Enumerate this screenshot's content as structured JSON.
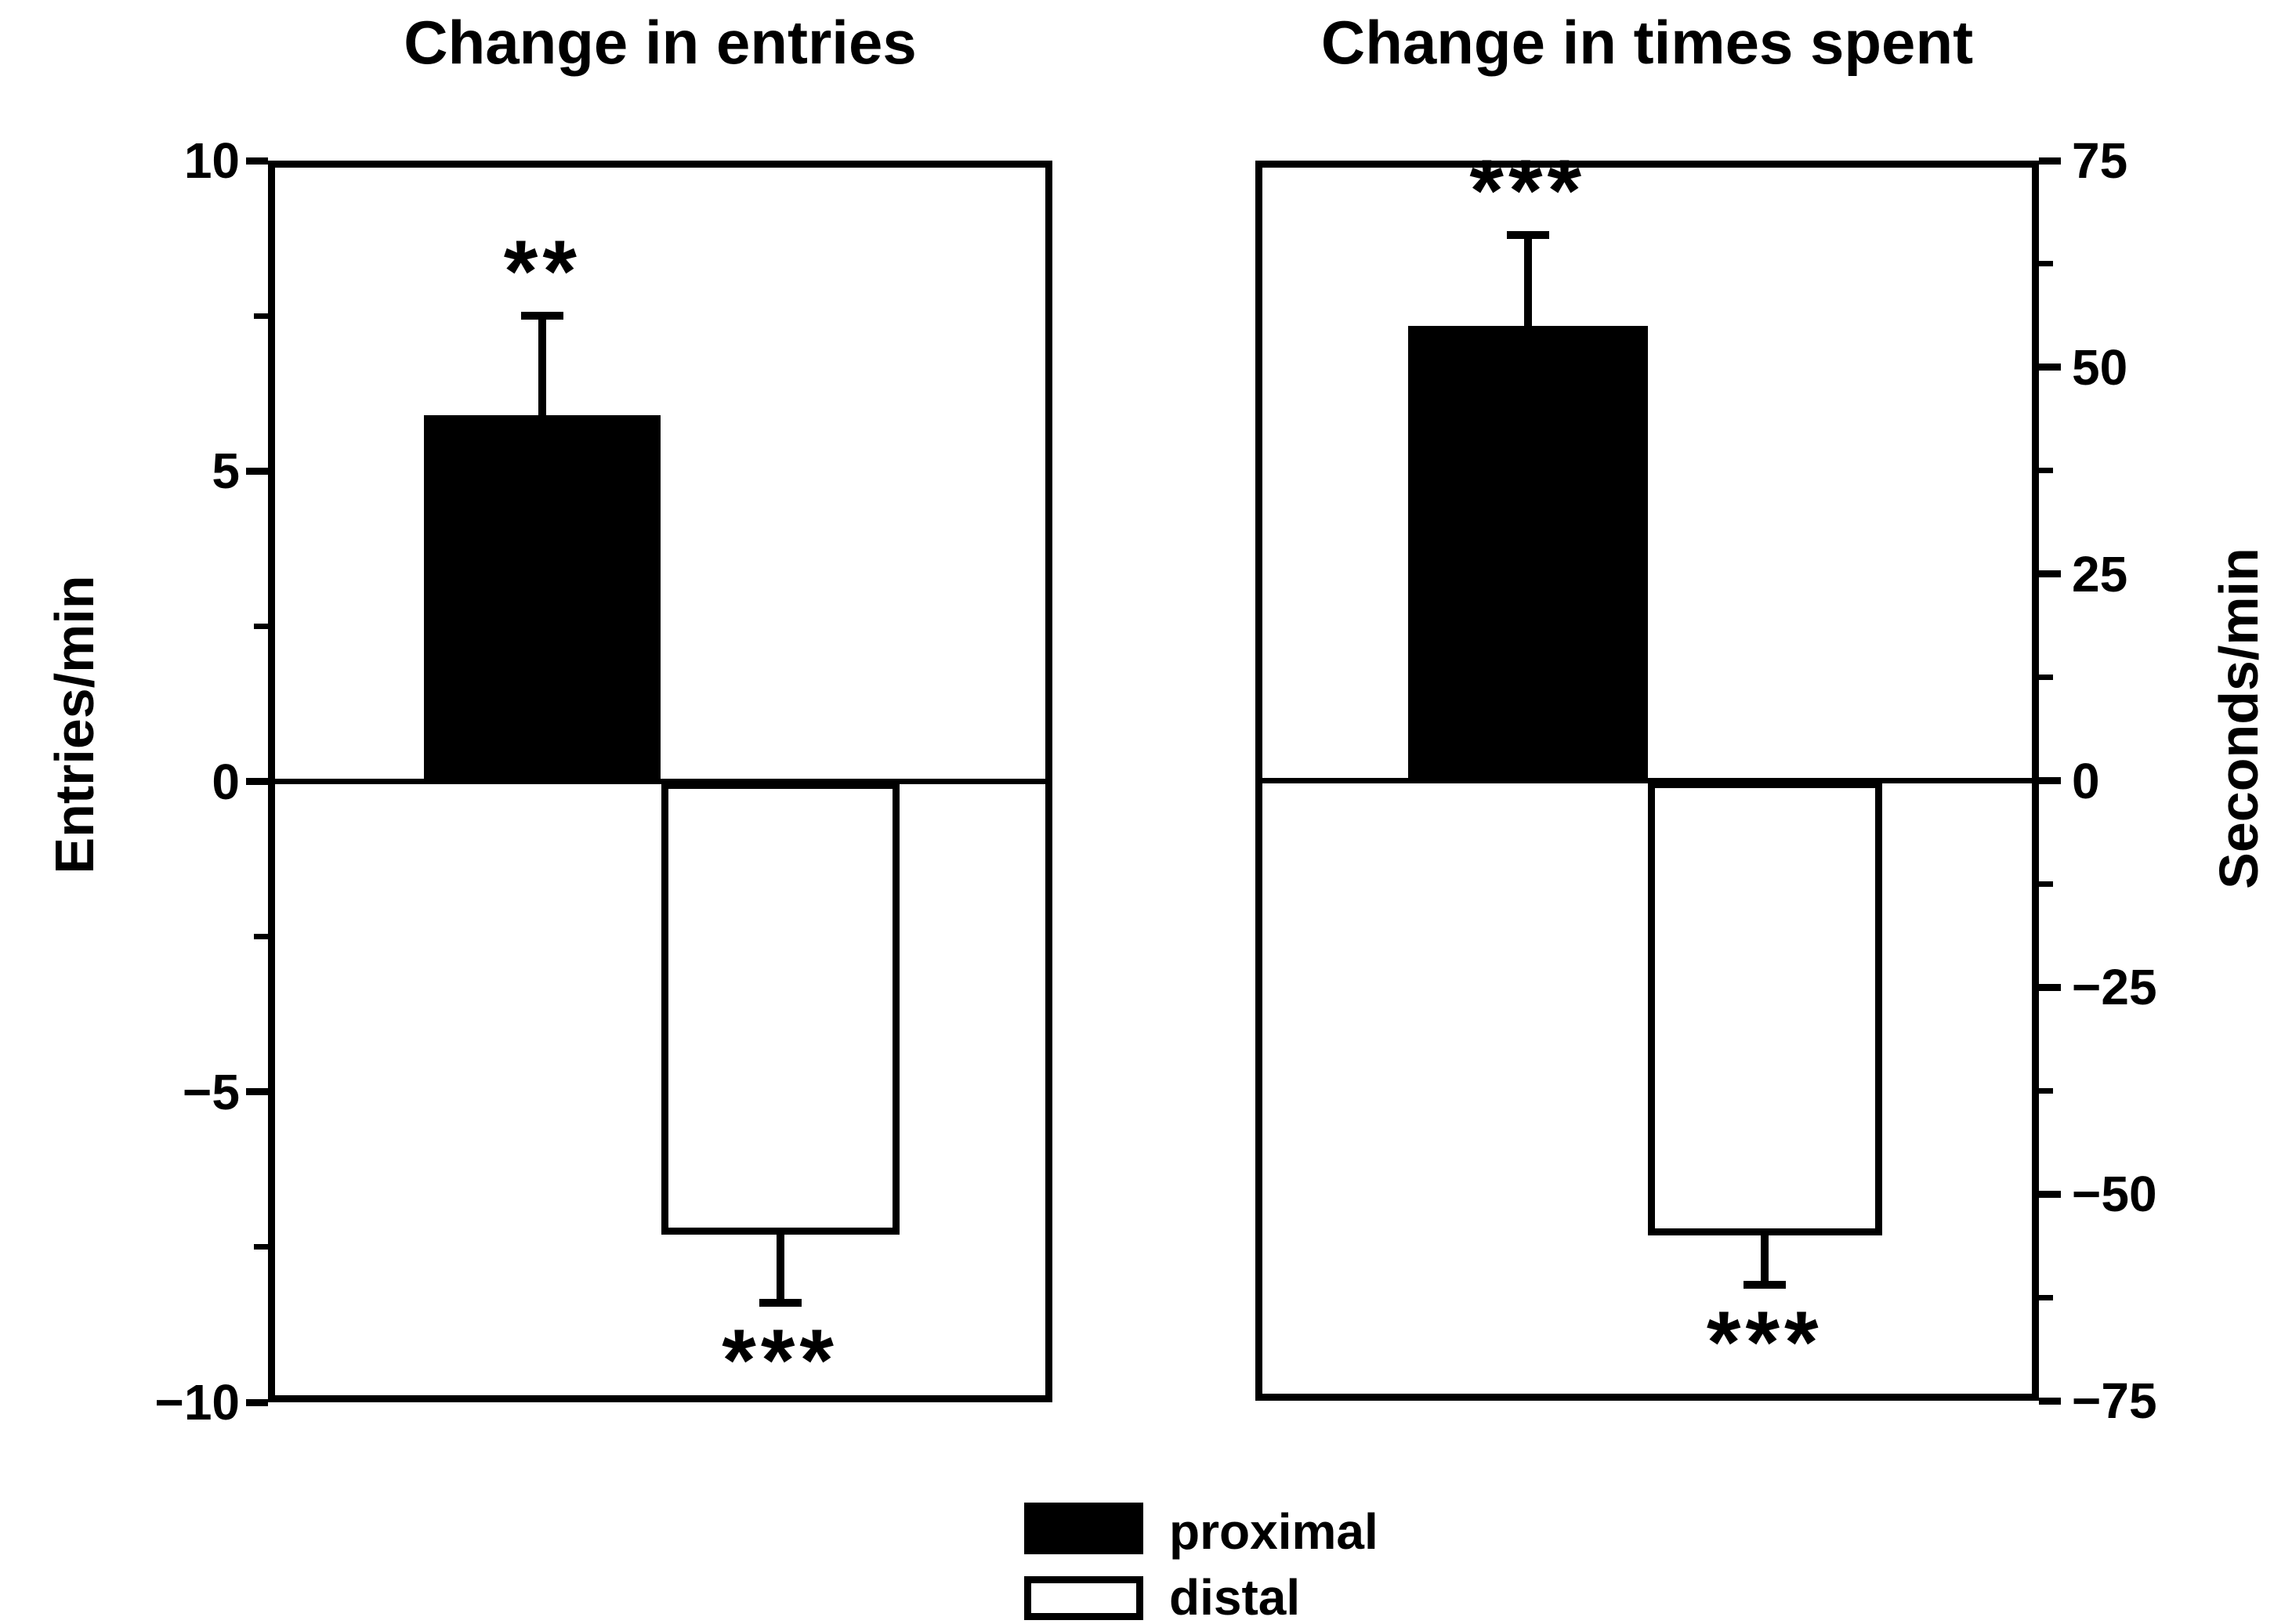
{
  "figure": {
    "background": "#ffffff",
    "ink": "#000000"
  },
  "chart_data": [
    {
      "type": "bar",
      "title": "Change in entries",
      "ylabel": "Entries/min",
      "ylim": [
        -10,
        10
      ],
      "yticks_major": [
        10,
        5,
        0,
        -5,
        -10
      ],
      "yticks_minor": [
        7.5,
        2.5,
        -2.5,
        -7.5
      ],
      "axis_side": "left",
      "grid": false,
      "categories": [
        "proximal",
        "distal"
      ],
      "series": [
        {
          "category": "proximal",
          "value": 5.9,
          "error": 1.6,
          "significance": "**",
          "fill": "#000000",
          "edge": "#000000"
        },
        {
          "category": "distal",
          "value": -7.3,
          "error": 1.1,
          "significance": "***",
          "fill": "#ffffff",
          "edge": "#000000"
        }
      ]
    },
    {
      "type": "bar",
      "title": "Change in times spent",
      "ylabel": "Seconds/min",
      "ylim": [
        -75,
        75
      ],
      "yticks_major": [
        75,
        50,
        25,
        0,
        -25,
        -50,
        -75
      ],
      "yticks_minor": [
        62.5,
        37.5,
        12.5,
        -12.5,
        -37.5,
        -62.5
      ],
      "axis_side": "right",
      "grid": false,
      "categories": [
        "proximal",
        "distal"
      ],
      "series": [
        {
          "category": "proximal",
          "value": 55,
          "error": 11,
          "significance": "***",
          "fill": "#000000",
          "edge": "#000000"
        },
        {
          "category": "distal",
          "value": -55,
          "error": 6,
          "significance": "***",
          "fill": "#ffffff",
          "edge": "#000000"
        }
      ]
    }
  ],
  "legend": {
    "position": "bottom-center",
    "items": [
      {
        "label": "proximal",
        "fill": "#000000"
      },
      {
        "label": "distal",
        "fill": "#ffffff"
      }
    ]
  }
}
